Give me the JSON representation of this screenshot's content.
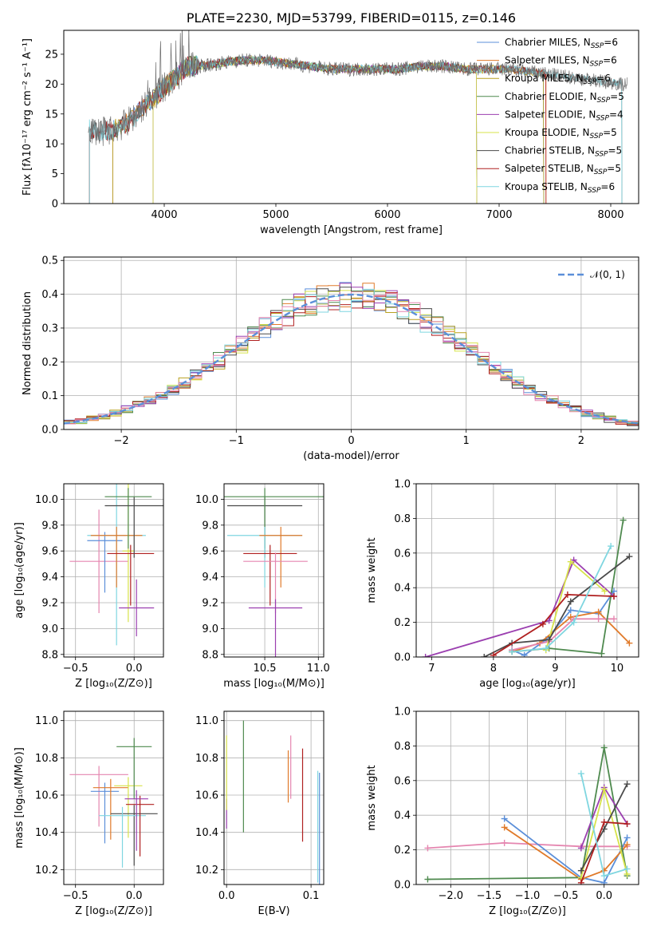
{
  "colors": {
    "chabrier_miles": "#5b8fd9",
    "salpeter_miles": "#e07a2a",
    "kroupa_miles": "#b8a020",
    "chabrier_elodie": "#4f8a4f",
    "salpeter_elodie": "#9b3fb0",
    "kroupa_elodie": "#d7e34a",
    "chabrier_stelib": "#4a4a4a",
    "salpeter_stelib": "#b02020",
    "kroupa_stelib": "#7fd6e0",
    "pink": "#e586b0",
    "normal": "#5b8fd9"
  },
  "chart_data": [
    {
      "id": "spectrum",
      "type": "line",
      "title": "PLATE=2230, MJD=53799, FIBERID=0115, z=0.146",
      "xlabel": "wavelength [Angstrom, rest frame]",
      "ylabel": "Flux [fλ10⁻¹⁷ erg cm⁻² s⁻¹ A⁻¹]",
      "xlim": [
        3100,
        8250
      ],
      "ylim": [
        0,
        29
      ],
      "xticks": [
        "4000",
        "5000",
        "6000",
        "7000",
        "8000"
      ],
      "yticks": [
        "0",
        "5",
        "10",
        "15",
        "20",
        "25"
      ],
      "legend_position": "upper-right",
      "legend": [
        {
          "label": "Chabrier MILES, N",
          "sub": "SSP",
          "tail": "=6",
          "color_key": "chabrier_miles"
        },
        {
          "label": "Salpeter MILES, N",
          "sub": "SSP",
          "tail": "=6",
          "color_key": "salpeter_miles"
        },
        {
          "label": "Kroupa MILES, N",
          "sub": "SSP",
          "tail": "=6",
          "color_key": "kroupa_miles"
        },
        {
          "label": "Chabrier ELODIE, N",
          "sub": "SSP",
          "tail": "=5",
          "color_key": "chabrier_elodie"
        },
        {
          "label": "Salpeter ELODIE, N",
          "sub": "SSP",
          "tail": "=4",
          "color_key": "salpeter_elodie"
        },
        {
          "label": "Kroupa ELODIE, N",
          "sub": "SSP",
          "tail": "=5",
          "color_key": "kroupa_elodie"
        },
        {
          "label": "Chabrier STELIB, N",
          "sub": "SSP",
          "tail": "=5",
          "color_key": "chabrier_stelib"
        },
        {
          "label": "Salpeter STELIB, N",
          "sub": "SSP",
          "tail": "=5",
          "color_key": "salpeter_stelib"
        },
        {
          "label": "Kroupa STELIB, N",
          "sub": "SSP",
          "tail": "=6",
          "color_key": "kroupa_stelib"
        }
      ],
      "data_envelope": [
        [
          3320,
          12.5
        ],
        [
          3450,
          12.0
        ],
        [
          3550,
          12.5
        ],
        [
          3620,
          13.0
        ],
        [
          3700,
          14.0
        ],
        [
          3800,
          16.0
        ],
        [
          3900,
          17.5
        ],
        [
          4000,
          19.5
        ],
        [
          4100,
          21.0
        ],
        [
          4200,
          23.0
        ],
        [
          4300,
          23.0
        ],
        [
          4500,
          23.5
        ],
        [
          4700,
          24.0
        ],
        [
          4900,
          24.0
        ],
        [
          5100,
          23.5
        ],
        [
          5300,
          23.0
        ],
        [
          5500,
          22.5
        ],
        [
          5700,
          22.5
        ],
        [
          5900,
          22.5
        ],
        [
          6100,
          22.5
        ],
        [
          6300,
          23.0
        ],
        [
          6500,
          23.0
        ],
        [
          6700,
          22.5
        ],
        [
          6900,
          22.5
        ],
        [
          7100,
          22.5
        ],
        [
          7300,
          22.0
        ],
        [
          7500,
          21.5
        ],
        [
          7700,
          21.0
        ],
        [
          7900,
          20.5
        ],
        [
          8100,
          20.0
        ]
      ],
      "model_series": [
        {
          "name": "Chabrier MILES",
          "color_key": "chabrier_miles",
          "x_range": [
            3540,
            7400
          ]
        },
        {
          "name": "Salpeter MILES",
          "color_key": "salpeter_miles",
          "x_range": [
            3540,
            7420
          ]
        },
        {
          "name": "Kroupa MILES",
          "color_key": "kroupa_miles",
          "x_range": [
            3540,
            7400
          ]
        },
        {
          "name": "Chabrier ELODIE",
          "color_key": "chabrier_elodie",
          "x_range": [
            3900,
            6800
          ]
        },
        {
          "name": "Salpeter ELODIE",
          "color_key": "salpeter_elodie",
          "x_range": [
            3900,
            6800
          ]
        },
        {
          "name": "Kroupa ELODIE",
          "color_key": "kroupa_elodie",
          "x_range": [
            3900,
            6800
          ]
        },
        {
          "name": "Chabrier STELIB",
          "color_key": "chabrier_stelib",
          "x_range": [
            3330,
            8100
          ]
        },
        {
          "name": "Salpeter STELIB",
          "color_key": "salpeter_stelib",
          "x_range": [
            3330,
            7420
          ]
        },
        {
          "name": "Kroupa STELIB",
          "color_key": "kroupa_stelib",
          "x_range": [
            3330,
            8100
          ]
        }
      ]
    },
    {
      "id": "residuals",
      "type": "line",
      "xlabel": "(data-model)/error",
      "ylabel": "Normed distribution",
      "xlim": [
        -2.5,
        2.5
      ],
      "ylim": [
        0,
        0.51
      ],
      "xticks": [
        "−2",
        "−1",
        "0",
        "1",
        "2"
      ],
      "yticks": [
        "0.0",
        "0.1",
        "0.2",
        "0.3",
        "0.4",
        "0.5"
      ],
      "grid": true,
      "legend_label": "𝒩(0, 1)",
      "legend_position": "upper-right",
      "hist_edges_start": -2.5,
      "hist_bin_width": 0.1,
      "hist_bins": 50
    },
    {
      "id": "age_vs_Z",
      "type": "scatter",
      "xlabel": "Z [log₁₀(Z/Z⊙)]",
      "ylabel": "age  [log₁₀(age/yr)]",
      "xlim": [
        -0.6,
        0.25
      ],
      "ylim": [
        8.78,
        10.12
      ],
      "xticks": [
        "−0.5",
        "0.0"
      ],
      "yticks": [
        "8.8",
        "9.0",
        "9.2",
        "9.4",
        "9.6",
        "9.8",
        "10.0"
      ],
      "points": [
        {
          "color_key": "pink",
          "x": -0.3,
          "xerr": 0.25,
          "y": 9.52,
          "yerr": 0.4
        },
        {
          "color_key": "chabrier_miles",
          "x": -0.25,
          "xerr": 0.15,
          "y": 9.68,
          "yerr": 0.0
        },
        {
          "color_key": "kroupa_stelib",
          "x": -0.15,
          "xerr": 0.25,
          "y": 9.72,
          "yerr": 0.85
        },
        {
          "color_key": "salpeter_miles",
          "x": -0.15,
          "xerr": 0.22,
          "y": 9.72,
          "yerr": 0.0
        },
        {
          "color_key": "kroupa_elodie",
          "x": -0.05,
          "xerr": 0.05,
          "y": 9.6,
          "yerr": 0.55
        },
        {
          "color_key": "salpeter_stelib",
          "x": -0.03,
          "xerr": 0.2,
          "y": 9.58,
          "yerr": 0.0
        },
        {
          "color_key": "salpeter_elodie",
          "x": 0.02,
          "xerr": 0.15,
          "y": 9.16,
          "yerr": 0.22
        },
        {
          "color_key": "chabrier_elodie",
          "x": -0.05,
          "xerr": 0.2,
          "y": 10.02,
          "yerr": 0.0
        },
        {
          "color_key": "chabrier_stelib",
          "x": 0.0,
          "xerr": 0.25,
          "y": 9.95,
          "yerr": 0.0
        }
      ]
    },
    {
      "id": "age_vs_mass",
      "type": "scatter",
      "xlabel": "mass [log₁₀(M/M⊙)]",
      "xlim": [
        10.12,
        11.05
      ],
      "ylim": [
        8.78,
        10.12
      ],
      "xticks": [
        "10.5",
        "11.0"
      ],
      "yticks": [
        "8.8",
        "9.0",
        "9.2",
        "9.4",
        "9.6",
        "9.8",
        "10.0"
      ],
      "points": [
        {
          "color_key": "chabrier_stelib",
          "x": 10.5,
          "xerr": 0.35,
          "y": 9.95
        },
        {
          "color_key": "chabrier_elodie",
          "x": 10.5,
          "xerr": 0.55,
          "y": 10.02
        },
        {
          "color_key": "kroupa_stelib",
          "x": 10.5,
          "xerr": 0.35,
          "y": 9.72
        },
        {
          "color_key": "salpeter_miles",
          "x": 10.65,
          "xerr": 0.2,
          "y": 9.72
        },
        {
          "color_key": "salpeter_stelib",
          "x": 10.55,
          "xerr": 0.25,
          "y": 9.58
        },
        {
          "color_key": "pink",
          "x": 10.6,
          "xerr": 0.3,
          "y": 9.52
        },
        {
          "color_key": "salpeter_elodie",
          "x": 10.6,
          "xerr": 0.25,
          "y": 9.16
        }
      ]
    },
    {
      "id": "weight_vs_age",
      "type": "line",
      "xlabel": "age  [log₁₀(age/yr)]",
      "ylabel": "mass weight",
      "xlim": [
        6.75,
        10.35
      ],
      "ylim": [
        0,
        1.0
      ],
      "xticks": [
        "7",
        "8",
        "9",
        "10"
      ],
      "yticks": [
        "0.0",
        "0.2",
        "0.4",
        "0.6",
        "0.8",
        "1.0"
      ],
      "series": [
        {
          "color_key": "chabrier_miles",
          "x": [
            8.3,
            8.5,
            8.85,
            9.25,
            9.7,
            9.95
          ],
          "y": [
            0.04,
            0.01,
            0.1,
            0.27,
            0.25,
            0.38
          ]
        },
        {
          "color_key": "salpeter_miles",
          "x": [
            8.3,
            8.75,
            9.25,
            9.7,
            10.2
          ],
          "y": [
            0.03,
            0.08,
            0.23,
            0.26,
            0.08
          ]
        },
        {
          "color_key": "pink",
          "x": [
            8.3,
            8.9,
            9.3,
            9.7,
            9.95
          ],
          "y": [
            0.04,
            0.09,
            0.22,
            0.22,
            0.22
          ]
        },
        {
          "color_key": "chabrier_elodie",
          "x": [
            8.3,
            8.9,
            9.75,
            10.1
          ],
          "y": [
            0.03,
            0.05,
            0.02,
            0.79
          ]
        },
        {
          "color_key": "salpeter_elodie",
          "x": [
            6.9,
            8.9,
            9.3,
            9.95
          ],
          "y": [
            0.0,
            0.21,
            0.56,
            0.35
          ]
        },
        {
          "color_key": "kroupa_elodie",
          "x": [
            8.85,
            9.25,
            9.8
          ],
          "y": [
            0.04,
            0.55,
            0.38
          ]
        },
        {
          "color_key": "chabrier_stelib",
          "x": [
            7.85,
            8.3,
            8.9,
            9.25,
            10.2
          ],
          "y": [
            0.0,
            0.08,
            0.1,
            0.32,
            0.58
          ]
        },
        {
          "color_key": "salpeter_stelib",
          "x": [
            8.0,
            8.8,
            9.2,
            9.95
          ],
          "y": [
            0.01,
            0.19,
            0.36,
            0.35
          ]
        },
        {
          "color_key": "kroupa_stelib",
          "x": [
            8.3,
            8.85,
            9.3,
            9.9
          ],
          "y": [
            0.03,
            0.05,
            0.2,
            0.64
          ]
        }
      ]
    },
    {
      "id": "mass_vs_Z",
      "type": "scatter",
      "xlabel": "Z [log₁₀(Z/Z⊙)]",
      "ylabel": "mass [log₁₀(M/M⊙)]",
      "xlim": [
        -0.6,
        0.25
      ],
      "ylim": [
        10.12,
        11.05
      ],
      "xticks": [
        "−0.5",
        "0.0"
      ],
      "yticks": [
        "10.2",
        "10.4",
        "10.6",
        "10.8",
        "11.0"
      ],
      "points": [
        {
          "color_key": "pink",
          "x": -0.3,
          "xerr": 0.25,
          "y": 10.71
        },
        {
          "color_key": "chabrier_miles",
          "x": -0.25,
          "xerr": 0.12,
          "y": 10.62
        },
        {
          "color_key": "salpeter_miles",
          "x": -0.2,
          "xerr": 0.15,
          "y": 10.64
        },
        {
          "color_key": "kroupa_elodie",
          "x": -0.05,
          "xerr": 0.12,
          "y": 10.65
        },
        {
          "color_key": "chabrier_stelib",
          "x": 0.0,
          "xerr": 0.2,
          "y": 10.5
        },
        {
          "color_key": "kroupa_stelib",
          "x": -0.1,
          "xerr": 0.2,
          "y": 10.49
        },
        {
          "color_key": "salpeter_stelib",
          "x": 0.05,
          "xerr": 0.12,
          "y": 10.55
        },
        {
          "color_key": "salpeter_elodie",
          "x": 0.02,
          "xerr": 0.1,
          "y": 10.58
        },
        {
          "color_key": "chabrier_elodie",
          "x": 0.0,
          "xerr": 0.15,
          "y": 10.86
        }
      ]
    },
    {
      "id": "mass_vs_ebv",
      "type": "scatter",
      "xlabel": "E(B-V)",
      "xlim": [
        -0.003,
        0.115
      ],
      "ylim": [
        10.12,
        11.05
      ],
      "xticks": [
        "0.0",
        "0.1"
      ],
      "yticks": [
        "10.2",
        "10.4",
        "10.6",
        "10.8",
        "11.0"
      ],
      "points": [
        {
          "color_key": "salpeter_elodie",
          "x": 0.0,
          "y": 10.5,
          "yerr": 0.08
        },
        {
          "color_key": "kroupa_elodie",
          "x": 0.0,
          "y": 10.72,
          "yerr": 0.2
        },
        {
          "color_key": "chabrier_elodie",
          "x": 0.02,
          "y": 10.7,
          "yerr": 0.3
        },
        {
          "color_key": "salpeter_miles",
          "x": 0.073,
          "y": 10.7,
          "yerr": 0.14
        },
        {
          "color_key": "pink",
          "x": 0.076,
          "y": 10.75,
          "yerr": 0.17
        },
        {
          "color_key": "salpeter_stelib",
          "x": 0.09,
          "y": 10.6,
          "yerr": 0.25
        },
        {
          "color_key": "kroupa_stelib",
          "x": 0.108,
          "y": 10.43,
          "yerr": 0.3
        },
        {
          "color_key": "chabrier_miles",
          "x": 0.11,
          "y": 10.42,
          "yerr": 0.3
        }
      ]
    },
    {
      "id": "weight_vs_Z",
      "type": "line",
      "xlabel": "Z [log₁₀(Z/Z⊙)]",
      "ylabel": "mass weight",
      "xlim": [
        -2.45,
        0.45
      ],
      "ylim": [
        0,
        1.0
      ],
      "xticks": [
        "−2.0",
        "−1.5",
        "−1.0",
        "−0.5",
        "0.0"
      ],
      "yticks": [
        "0.0",
        "0.2",
        "0.4",
        "0.6",
        "0.8",
        "1.0"
      ],
      "series": [
        {
          "color_key": "pink",
          "x": [
            -2.3,
            -1.3,
            -0.3,
            0.3
          ],
          "y": [
            0.21,
            0.24,
            0.22,
            0.22
          ]
        },
        {
          "color_key": "chabrier_miles",
          "x": [
            -1.3,
            -0.3,
            0.0,
            0.3
          ],
          "y": [
            0.38,
            0.04,
            0.01,
            0.27
          ]
        },
        {
          "color_key": "salpeter_miles",
          "x": [
            -1.3,
            -0.3,
            0.0,
            0.3
          ],
          "y": [
            0.33,
            0.03,
            0.08,
            0.23
          ]
        },
        {
          "color_key": "chabrier_elodie",
          "x": [
            -2.3,
            -0.3,
            0.0,
            0.3
          ],
          "y": [
            0.03,
            0.04,
            0.79,
            0.05
          ]
        },
        {
          "color_key": "salpeter_elodie",
          "x": [
            -0.3,
            0.0,
            0.3
          ],
          "y": [
            0.21,
            0.56,
            0.35
          ]
        },
        {
          "color_key": "kroupa_elodie",
          "x": [
            -0.3,
            0.0,
            0.3
          ],
          "y": [
            0.04,
            0.55,
            0.06
          ]
        },
        {
          "color_key": "chabrier_stelib",
          "x": [
            -0.3,
            0.0,
            0.3
          ],
          "y": [
            0.08,
            0.32,
            0.58
          ]
        },
        {
          "color_key": "salpeter_stelib",
          "x": [
            -0.3,
            0.0,
            0.3
          ],
          "y": [
            0.01,
            0.36,
            0.35
          ]
        },
        {
          "color_key": "kroupa_stelib",
          "x": [
            -0.3,
            0.0,
            0.3
          ],
          "y": [
            0.64,
            0.05,
            0.09
          ]
        }
      ]
    }
  ]
}
